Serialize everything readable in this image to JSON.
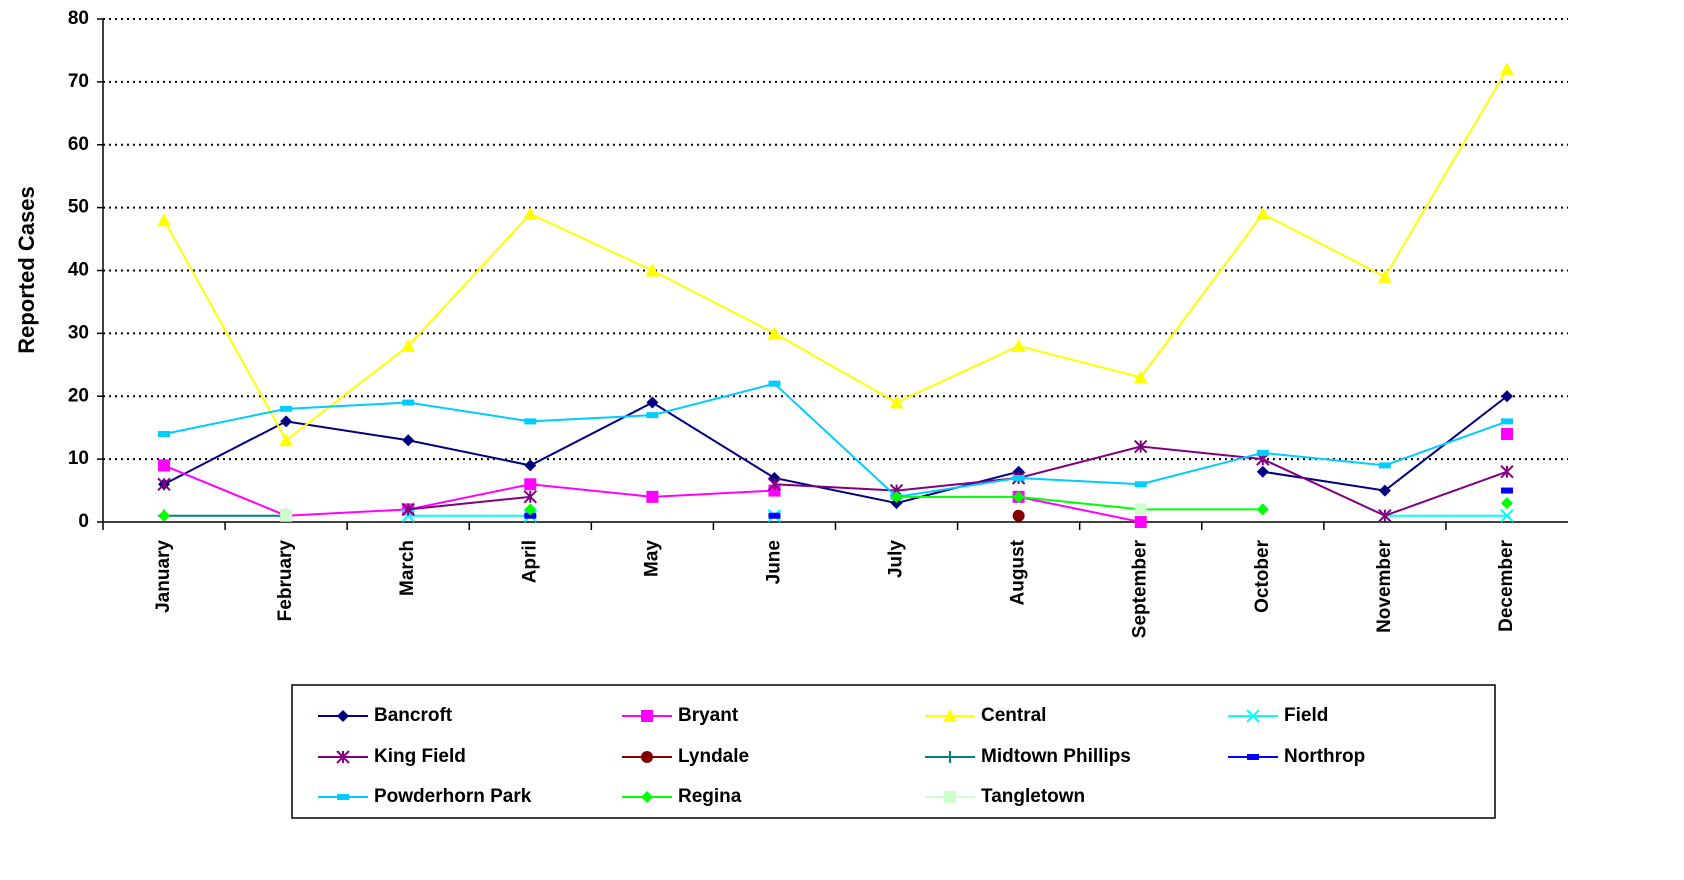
{
  "chart_data": {
    "type": "line",
    "y_label": "Reported Cases",
    "categories": [
      "January",
      "February",
      "March",
      "April",
      "May",
      "June",
      "July",
      "August",
      "September",
      "October",
      "November",
      "December"
    ],
    "ylim": [
      0,
      80
    ],
    "yticks": [
      0,
      10,
      20,
      30,
      40,
      50,
      60,
      70,
      80
    ],
    "grid": true,
    "legend": "bottom",
    "series": [
      {
        "name": "Bancroft",
        "color": "#000080",
        "marker": "diamond",
        "values": [
          6,
          16,
          13,
          9,
          19,
          7,
          3,
          8,
          null,
          8,
          5,
          20
        ]
      },
      {
        "name": "Bryant",
        "color": "#ff00ff",
        "marker": "square",
        "values": [
          9,
          1,
          2,
          6,
          4,
          5,
          null,
          4,
          0,
          null,
          null,
          14
        ]
      },
      {
        "name": "Central",
        "color": "#ffff00",
        "marker": "triangle",
        "values": [
          48,
          13,
          28,
          49,
          40,
          30,
          19,
          28,
          23,
          49,
          39,
          72
        ]
      },
      {
        "name": "Field",
        "color": "#00ffff",
        "marker": "x",
        "values": [
          null,
          null,
          1,
          1,
          null,
          1,
          null,
          null,
          null,
          null,
          1,
          1
        ]
      },
      {
        "name": "King Field",
        "color": "#800080",
        "marker": "star",
        "values": [
          6,
          null,
          2,
          4,
          null,
          6,
          5,
          7,
          12,
          10,
          1,
          8
        ]
      },
      {
        "name": "Lyndale",
        "color": "#800000",
        "marker": "circle",
        "values": [
          null,
          null,
          null,
          null,
          null,
          null,
          null,
          1,
          null,
          null,
          null,
          null
        ]
      },
      {
        "name": "Midtown Phillips",
        "color": "#008080",
        "marker": "plus",
        "values": [
          1,
          1,
          null,
          null,
          null,
          null,
          null,
          null,
          null,
          null,
          null,
          null
        ]
      },
      {
        "name": "Northrop",
        "color": "#0000ff",
        "marker": "dash",
        "values": [
          null,
          null,
          null,
          1,
          null,
          1,
          null,
          null,
          null,
          null,
          null,
          5
        ]
      },
      {
        "name": "Powderhorn Park",
        "color": "#00ccff",
        "marker": "dash",
        "values": [
          14,
          18,
          19,
          16,
          17,
          22,
          4,
          7,
          6,
          11,
          9,
          16
        ]
      },
      {
        "name": "Regina",
        "color": "#00ff00",
        "marker": "diamond",
        "values": [
          1,
          null,
          null,
          2,
          null,
          null,
          4,
          4,
          2,
          2,
          null,
          3
        ]
      },
      {
        "name": "Tangletown",
        "color": "#ccffcc",
        "marker": "square",
        "values": [
          null,
          1,
          null,
          null,
          null,
          null,
          null,
          null,
          2,
          null,
          null,
          null
        ]
      }
    ]
  }
}
